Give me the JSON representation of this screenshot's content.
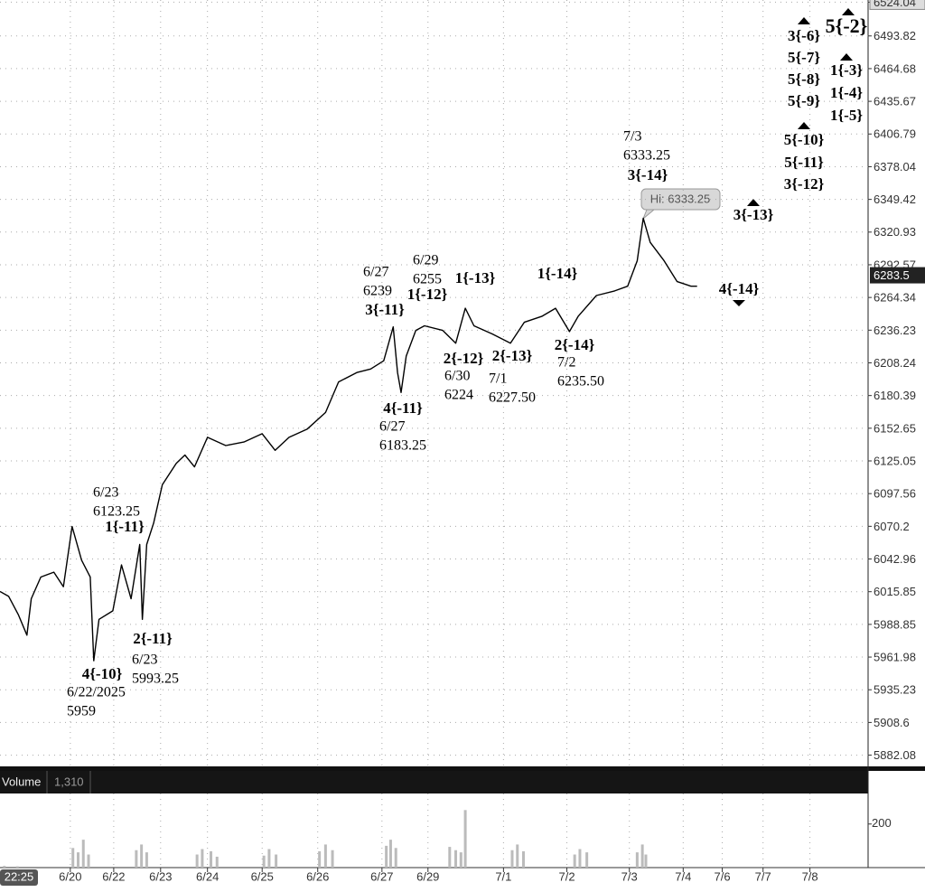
{
  "chart_data": [
    {
      "type": "line",
      "color": "#000000",
      "scale": "log",
      "grid": true,
      "x": [
        0,
        1.0,
        2.1,
        3.1,
        3.6,
        4.7,
        6.2,
        7.3,
        8.3,
        9.4,
        10.4,
        10.8,
        11.4,
        13.0,
        14.0,
        15.1,
        16.1,
        16.4,
        16.9,
        17.7,
        18.7,
        20.3,
        21.3,
        22.4,
        23.9,
        26.0,
        28.1,
        30.2,
        31.7,
        33.3,
        35.4,
        37.5,
        39.0,
        41.1,
        42.7,
        44.2,
        45.3,
        45.8,
        46.2,
        46.8,
        47.9,
        48.9,
        51.0,
        52.5,
        53.6,
        54.6,
        56.7,
        58.8,
        60.4,
        62.4,
        64.0,
        65.6,
        66.6,
        68.7,
        70.8,
        72.3,
        73.4,
        74.1,
        74.9,
        76.5,
        78.0,
        79.6,
        80.3
      ],
      "values": [
        6016,
        6012,
        5997,
        5980,
        6010,
        6028,
        6032,
        6020,
        6070,
        6042,
        6028,
        5959,
        5993,
        6000,
        6038,
        6010,
        6055,
        5993,
        6055,
        6073,
        6105,
        6123,
        6130,
        6120,
        6145,
        6138,
        6141,
        6148,
        6134,
        6145,
        6152,
        6166,
        6192,
        6200,
        6203,
        6210,
        6239,
        6200,
        6183,
        6214,
        6236,
        6240,
        6236,
        6225,
        6255,
        6240,
        6233,
        6225,
        6243,
        6248,
        6255,
        6235,
        6248,
        6266,
        6270,
        6274,
        6296,
        6333,
        6312,
        6296,
        6278,
        6274,
        6274
      ],
      "xlim": [
        0,
        100
      ],
      "xticks": [
        {
          "value": 8.1,
          "label": "6/20"
        },
        {
          "value": 13.1,
          "label": "6/22"
        },
        {
          "value": 18.5,
          "label": "6/23"
        },
        {
          "value": 23.9,
          "label": "6/24"
        },
        {
          "value": 30.2,
          "label": "6/25"
        },
        {
          "value": 36.6,
          "label": "6/26"
        },
        {
          "value": 44.0,
          "label": "6/27"
        },
        {
          "value": 49.3,
          "label": "6/29"
        },
        {
          "value": 58.0,
          "label": "7/1"
        },
        {
          "value": 65.3,
          "label": "7/2"
        },
        {
          "value": 72.5,
          "label": "7/3"
        },
        {
          "value": 78.7,
          "label": "7/4"
        },
        {
          "value": 83.2,
          "label": "7/6"
        },
        {
          "value": 87.9,
          "label": "7/7"
        },
        {
          "value": 93.3,
          "label": "7/8"
        }
      ],
      "ylim": [
        5873,
        6526
      ],
      "yticks": [
        6524.04,
        6493.82,
        6464.68,
        6435.67,
        6406.79,
        6378.04,
        6349.42,
        6320.93,
        6292.57,
        6264.34,
        6236.23,
        6208.24,
        6180.39,
        6152.65,
        6125.05,
        6097.56,
        6070.2,
        6042.96,
        6015.85,
        5988.85,
        5961.98,
        5935.23,
        5908.6,
        5882.08
      ]
    },
    {
      "type": "bar",
      "title": "Volume",
      "color": "#bbbbbb",
      "x": [
        0.5,
        2.0,
        8.4,
        9.0,
        9.6,
        10.2,
        15.7,
        16.3,
        16.9,
        22.7,
        23.3,
        24.3,
        25.0,
        30.4,
        31.0,
        31.8,
        36.8,
        37.5,
        38.3,
        44.5,
        45.0,
        45.6,
        51.8,
        52.5,
        53.1,
        53.6,
        59.0,
        59.6,
        60.3,
        66.2,
        66.8,
        67.6,
        73.4,
        74.0,
        74.4
      ],
      "values": [
        8,
        6,
        90,
        70,
        128,
        60,
        80,
        106,
        70,
        60,
        85,
        75,
        50,
        55,
        85,
        60,
        75,
        106,
        80,
        100,
        128,
        90,
        95,
        80,
        70,
        264,
        80,
        106,
        75,
        60,
        85,
        70,
        70,
        106,
        60
      ],
      "ylim": [
        0,
        340
      ],
      "yticks": [
        200
      ]
    }
  ],
  "volume_reading": "1,310",
  "last_price": 6283.5,
  "hi_label": "Hi: 6333.25",
  "time_label": "22:25",
  "annotations": [
    "3{-6}",
    "5{-2}",
    "5{-7}",
    "1{-3}",
    "5{-8}",
    "1{-4}",
    "5{-9}",
    "1{-5}",
    "5{-10}",
    "5{-11}",
    "3{-12}",
    "3{-13}",
    "4{-14}",
    "7/3",
    "6333.25",
    "3{-14}",
    "6/27",
    "6239",
    "3{-11}",
    "6/29",
    "6255",
    "1{-12}",
    "1{-13}",
    "1{-14}",
    "2{-12}",
    "6/30",
    "6224",
    "2{-13}",
    "7/1",
    "6227.50",
    "2{-14}",
    "7/2",
    "6235.50",
    "4{-11}",
    "6/27",
    "6183.25",
    "6/23",
    "6123.25",
    "1{-11}",
    "2{-11}",
    "6/23",
    "5993.25",
    "4{-10}",
    "6/22/2025",
    "5959"
  ]
}
